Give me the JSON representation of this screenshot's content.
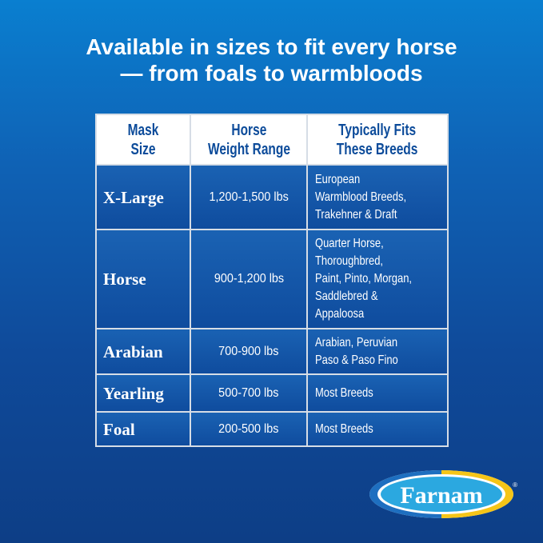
{
  "headline": {
    "line1": "Available in sizes to fit every horse",
    "line2": "— from foals to warmbloods"
  },
  "table": {
    "headers": [
      "Mask Size",
      "Horse Weight Range",
      "Typically Fits These Breeds"
    ],
    "header_lines": [
      [
        "Mask",
        "Size"
      ],
      [
        "Horse",
        "Weight Range"
      ],
      [
        "Typically Fits",
        "These Breeds"
      ]
    ],
    "rows": [
      {
        "size": "X-Large",
        "weight": "1,200-1,500 lbs",
        "breeds": [
          "European",
          "Warmblood Breeds,",
          "Trakehner & Draft"
        ]
      },
      {
        "size": "Horse",
        "weight": "900-1,200 lbs",
        "breeds": [
          "Quarter Horse,",
          "Thoroughbred,",
          "Paint, Pinto, Morgan,",
          "Saddlebred &",
          "Appaloosa"
        ]
      },
      {
        "size": "Arabian",
        "weight": "700-900 lbs",
        "breeds": [
          "Arabian, Peruvian",
          "Paso & Paso Fino"
        ]
      },
      {
        "size": "Yearling",
        "weight": "500-700 lbs",
        "breeds": [
          "Most Breeds"
        ]
      },
      {
        "size": "Foal",
        "weight": "200-500 lbs",
        "breeds": [
          "Most Breeds"
        ]
      }
    ]
  },
  "logo": {
    "text": "Farnam",
    "registered": "®"
  },
  "colors": {
    "background_top": "#0a7fd0",
    "background_bottom": "#0d3e86",
    "header_text": "#0c4b9a",
    "logo_blue": "#2ba8e0",
    "logo_yellow": "#f5c518"
  }
}
